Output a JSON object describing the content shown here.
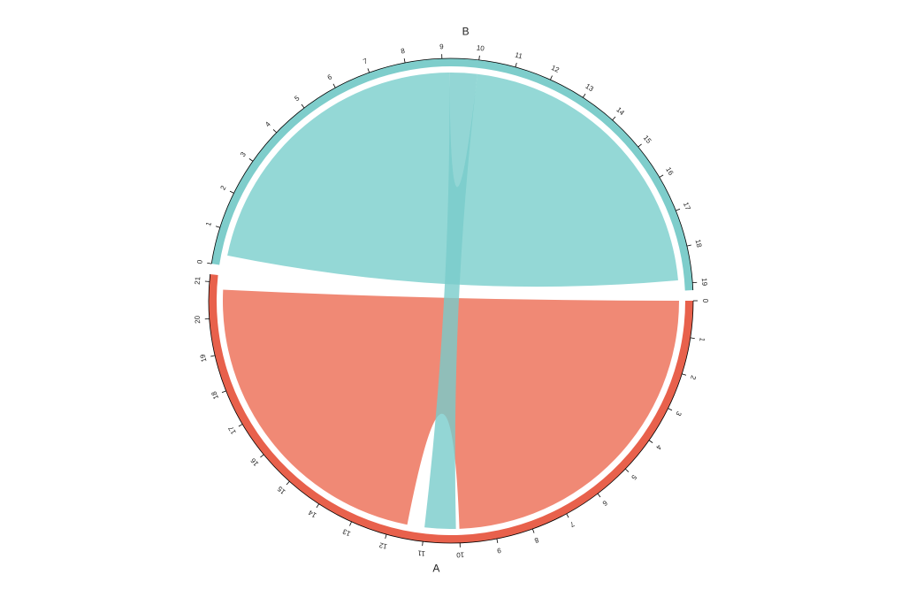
{
  "chart_data": {
    "type": "chord",
    "sectors": [
      {
        "name": "A",
        "color": "#E8614C",
        "xlim": [
          0,
          21.2
        ],
        "ticks": [
          0,
          1,
          2,
          3,
          4,
          5,
          6,
          7,
          8,
          9,
          10,
          11,
          12,
          13,
          14,
          15,
          16,
          17,
          18,
          19,
          20,
          21
        ]
      },
      {
        "name": "B",
        "color": "#7ECDCB",
        "xlim": [
          0,
          19.2
        ],
        "ticks": [
          0,
          1,
          2,
          3,
          4,
          5,
          6,
          7,
          8,
          9,
          10,
          11,
          12,
          13,
          14,
          15,
          16,
          17,
          18,
          19
        ]
      }
    ],
    "links": [
      {
        "from": "A",
        "from_range": [
          0,
          10
        ],
        "to": "A",
        "to_range": [
          11.5,
          20.8
        ],
        "color": "#F08975"
      },
      {
        "from": "B",
        "from_range": [
          0.3,
          9.2
        ],
        "to": "B",
        "to_range": [
          10,
          18.9
        ],
        "color": "#94D8D6"
      },
      {
        "from": "A",
        "from_range": [
          10.1,
          11
        ],
        "to": "B",
        "to_range": [
          9.2,
          10
        ],
        "color": "#78CCCA"
      }
    ]
  }
}
